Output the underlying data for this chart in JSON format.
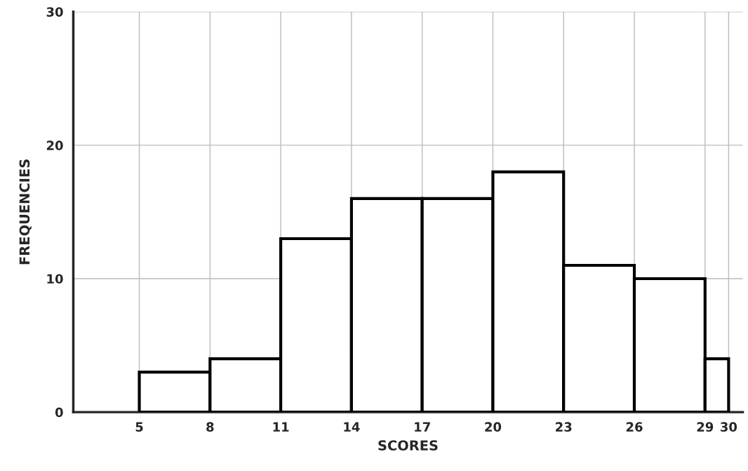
{
  "chart_data": {
    "type": "histogram",
    "xlabel": "SCORES",
    "ylabel": "FREQUENCIES",
    "bins": [
      5,
      8,
      11,
      14,
      17,
      20,
      23,
      26,
      29,
      30
    ],
    "values": [
      3,
      4,
      13,
      16,
      16,
      18,
      11,
      10,
      4
    ],
    "color": "#ffffff",
    "xlim": [
      2.2,
      30.6
    ],
    "ylim": [
      0,
      30
    ],
    "xticks": [
      5,
      8,
      11,
      14,
      17,
      20,
      23,
      26,
      29,
      30
    ],
    "yticks": [
      0,
      10,
      20,
      30
    ],
    "grid": true
  }
}
